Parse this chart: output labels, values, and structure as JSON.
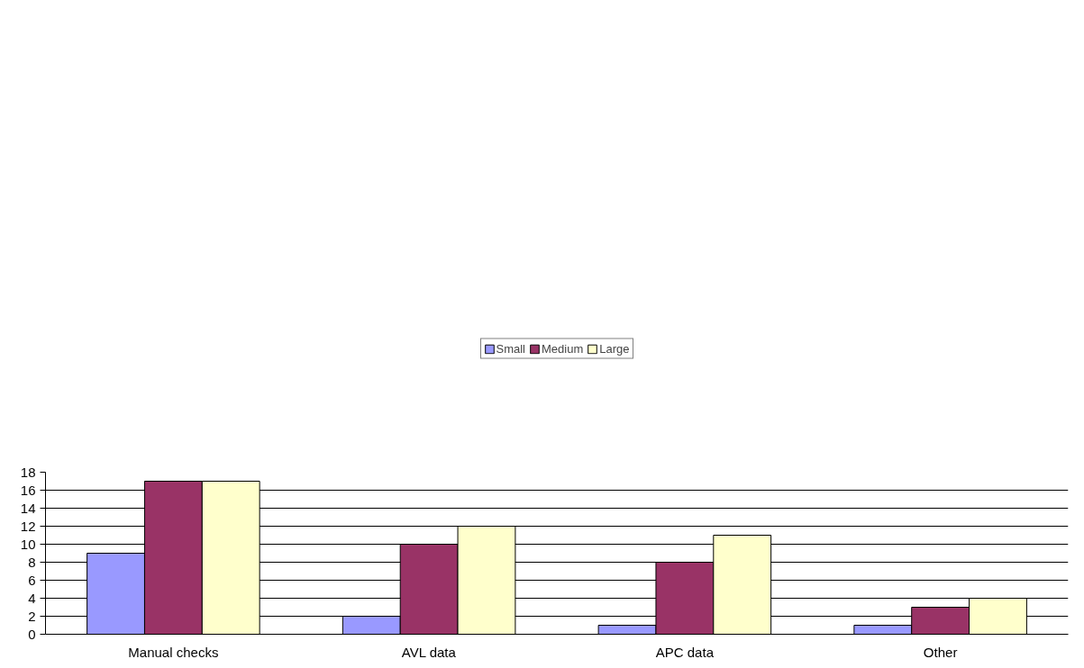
{
  "chart_data": {
    "type": "bar",
    "categories": [
      "Manual checks",
      "AVL data",
      "APC data",
      "Other"
    ],
    "series": [
      {
        "name": "Small",
        "color": "#9999ff",
        "values": [
          9,
          2,
          1,
          1
        ]
      },
      {
        "name": "Medium",
        "color": "#993366",
        "values": [
          17,
          10,
          8,
          3
        ]
      },
      {
        "name": "Large",
        "color": "#ffffcc",
        "values": [
          17,
          12,
          11,
          4
        ]
      }
    ],
    "ylim": [
      0,
      18
    ],
    "yticks": [
      0,
      2,
      4,
      6,
      8,
      10,
      12,
      14,
      16,
      18
    ],
    "grid": "y",
    "legend": "top"
  }
}
